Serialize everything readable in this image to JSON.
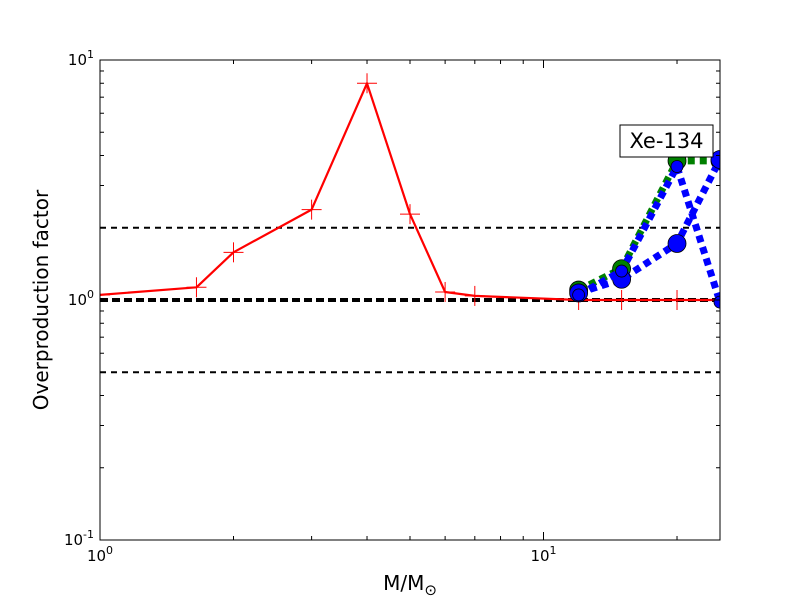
{
  "chart_data": {
    "type": "line",
    "xlabel": {
      "main": "M/M",
      "subscript": "⊙"
    },
    "ylabel": "Overproduction factor",
    "xscale": "log",
    "yscale": "log",
    "xlim": [
      1,
      25
    ],
    "ylim": [
      0.1,
      10
    ],
    "grid": false,
    "x_ticks": [
      {
        "value": 1,
        "base": "10",
        "exp": "0"
      },
      {
        "value": 10,
        "base": "10",
        "exp": "1"
      }
    ],
    "y_ticks": [
      {
        "value": 0.1,
        "base": "10",
        "exp": "-1"
      },
      {
        "value": 1,
        "base": "10",
        "exp": "0"
      },
      {
        "value": 10,
        "base": "10",
        "exp": "1"
      }
    ],
    "annotation": "Xe-134",
    "reference_lines": [
      {
        "y": 2.0,
        "color": "#000000",
        "style": "dashed",
        "weight": "thin"
      },
      {
        "y": 1.0,
        "color": "#000000",
        "style": "dashed",
        "weight": "thick"
      },
      {
        "y": 0.5,
        "color": "#000000",
        "style": "dashed",
        "weight": "thin"
      }
    ],
    "series": [
      {
        "color": "#ff0000",
        "style": "solid",
        "marker": "plus",
        "x": [
          1.0,
          1.65,
          2.0,
          3.0,
          4.0,
          5.0,
          6.0,
          7.0,
          12.0,
          15.0,
          20.0,
          25.0
        ],
        "y": [
          1.05,
          1.13,
          1.58,
          2.38,
          8.0,
          2.28,
          1.08,
          1.04,
          1.0,
          1.0,
          1.0,
          1.0
        ]
      },
      {
        "color": "#008000",
        "style": "dotted",
        "marker": "circle",
        "x": [
          12.0,
          15.0,
          20.0,
          25.0
        ],
        "y": [
          1.1,
          1.35,
          3.8,
          3.8
        ]
      },
      {
        "color": "#0000ff",
        "style": "dotted",
        "marker": "circle",
        "x": [
          12.0,
          15.0,
          20.0,
          25.0
        ],
        "y": [
          1.07,
          1.22,
          1.72,
          3.85
        ]
      },
      {
        "color": "#0000ff",
        "style": "dotted",
        "marker": "circle-small",
        "x": [
          12.0,
          15.0,
          20.0,
          25.0
        ],
        "y": [
          1.05,
          1.32,
          3.6,
          0.98
        ]
      }
    ]
  }
}
